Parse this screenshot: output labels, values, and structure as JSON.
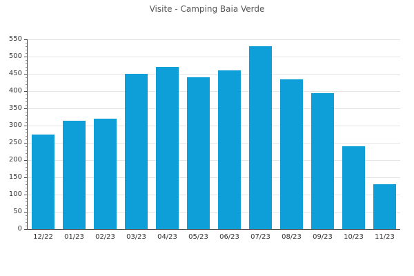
{
  "title": "Visite - Camping Baia Verde",
  "colors": {
    "bar": "#0E9FD8",
    "grid": "#e4e4e4",
    "axis": "#4a4a4a",
    "tick_text": "#333333",
    "title_text": "#555555",
    "background": "#ffffff"
  },
  "chart_data": {
    "type": "bar",
    "title": "Visite - Camping Baia Verde",
    "categories": [
      "12/22",
      "01/23",
      "02/23",
      "03/23",
      "04/23",
      "05/23",
      "06/23",
      "07/23",
      "08/23",
      "09/23",
      "10/23",
      "11/23"
    ],
    "values": [
      275,
      315,
      320,
      450,
      470,
      440,
      460,
      530,
      435,
      395,
      240,
      130
    ],
    "xlabel": "",
    "ylabel": "",
    "ylim": [
      0,
      550
    ],
    "ytick_step": 50,
    "ytick_labels": [
      "0",
      "50",
      "100",
      "150",
      "200",
      "250",
      "300",
      "350",
      "400",
      "450",
      "500",
      "550"
    ],
    "y_minor_tick_step": 10,
    "grid": "horizontal-major",
    "legend": "none",
    "bar_color": "#0E9FD8"
  }
}
